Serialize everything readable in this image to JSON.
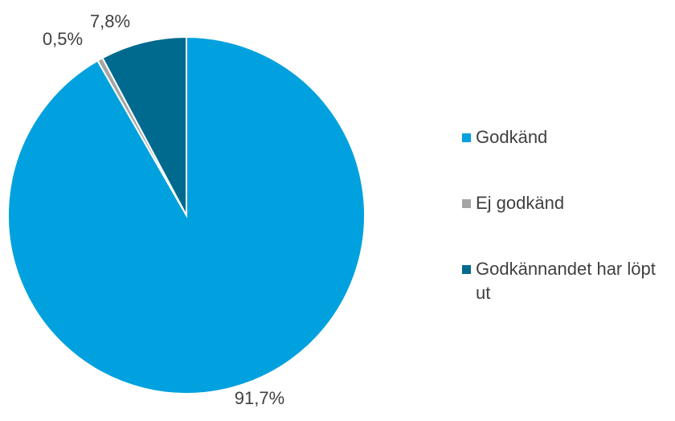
{
  "chart_data": {
    "type": "pie",
    "categories": [
      "Godkänd",
      "Ej godkänd",
      "Godkännandet har löpt ut"
    ],
    "values": [
      91.7,
      0.5,
      7.8
    ],
    "labels": [
      "91,7%",
      "0,5%",
      "7,8%"
    ],
    "colors": [
      "#00A1DE",
      "#A5A5A5",
      "#006A8E"
    ],
    "legend": "right",
    "title": ""
  },
  "legend": {
    "items": [
      {
        "label": "Godkänd",
        "color": "#00A1DE"
      },
      {
        "label": "Ej godkänd",
        "color": "#A5A5A5"
      },
      {
        "label": "Godkännandet har löpt ut",
        "color": "#006A8E"
      }
    ]
  }
}
